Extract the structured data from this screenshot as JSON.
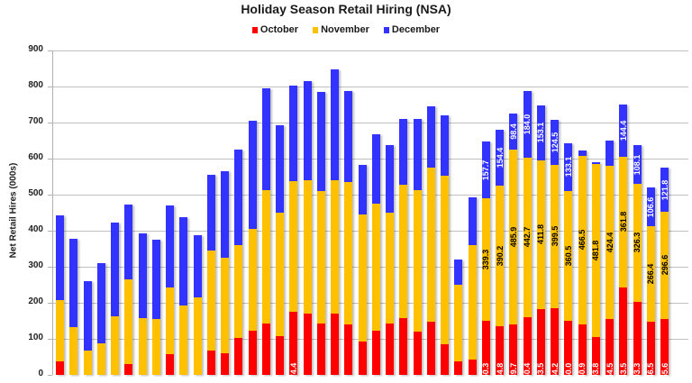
{
  "chart_data": {
    "type": "bar",
    "stacked": true,
    "title": "Holiday Season Retail Hiring (NSA)",
    "xlabel": "",
    "ylabel": "Net Retail Hires (000s)",
    "ylim": [
      0,
      900
    ],
    "yticks": [
      900,
      800,
      700,
      600,
      500,
      400,
      300,
      200,
      100,
      0
    ],
    "grid": true,
    "legend_position": "top",
    "legend": [
      "October",
      "November",
      "December"
    ],
    "colors": {
      "October": "#ff0000",
      "November": "#ffc000",
      "December": "#3333ff"
    },
    "categories": [
      "1",
      "2",
      "3",
      "4",
      "5",
      "6",
      "7",
      "8",
      "9",
      "10",
      "11",
      "12",
      "13",
      "14",
      "15",
      "16",
      "17",
      "18",
      "19",
      "20",
      "21",
      "22",
      "23",
      "24",
      "25",
      "26",
      "27",
      "28",
      "29",
      "30",
      "31",
      "32",
      "33",
      "34",
      "35",
      "36",
      "37",
      "38",
      "39",
      "40",
      "41",
      "42",
      "43",
      "44",
      "45"
    ],
    "series": [
      {
        "name": "October",
        "values": [
          37,
          0,
          0,
          0,
          0,
          30,
          0,
          0,
          58,
          0,
          0,
          68,
          59,
          103,
          122,
          142,
          108,
          174.4,
          171,
          142,
          169,
          140,
          93,
          123,
          143,
          157,
          120,
          148,
          86,
          37,
          43,
          150.3,
          134.8,
          139.7,
          160.4,
          183.5,
          184.2,
          150.0,
          140.9,
          103.8,
          154.5,
          243.5,
          203.3,
          146.5,
          155.6
        ]
      },
      {
        "name": "November",
        "values": [
          170,
          132,
          67,
          87,
          162,
          235,
          157,
          155,
          184,
          192,
          215,
          277,
          265,
          257,
          284,
          371,
          343,
          362,
          370,
          368,
          370,
          394,
          353,
          353,
          306,
          371,
          393,
          428,
          467,
          213,
          318,
          339.3,
          390.2,
          485.9,
          442.7,
          411.8,
          399.5,
          360.5,
          466.5,
          481.8,
          424.4,
          361.8,
          326.3,
          266.4,
          296.6
        ]
      },
      {
        "name": "December",
        "values": [
          235,
          246,
          192,
          222,
          260,
          207,
          235,
          220,
          227,
          245,
          173,
          211,
          242,
          265,
          298,
          283,
          241,
          266,
          273,
          275,
          308,
          253,
          136,
          191,
          189,
          181,
          196,
          169,
          168,
          71,
          132,
          157.7,
          154.4,
          98.4,
          184.0,
          153.1,
          124.5,
          133.1,
          16,
          4,
          71,
          144.4,
          108.1,
          106.6,
          121.8
        ]
      }
    ],
    "data_labels": {
      "October": {
        "18": "174.4",
        "32": "150.3",
        "33": "134.8",
        "34": "139.7",
        "35": "160.4",
        "36": "183.5",
        "37": "184.2",
        "38": "150.0",
        "39": "140.9",
        "40": "103.8",
        "41": "154.5",
        "42": "243.5",
        "43": "203.3",
        "44": "146.5",
        "45": "155.6"
      },
      "November": {
        "32": "339.3",
        "33": "390.2",
        "34": "485.9",
        "35": "442.7",
        "36": "411.8",
        "37": "399.5",
        "38": "360.5",
        "39": "466.5",
        "40": "481.8",
        "41": "424.4",
        "42": "361.8",
        "43": "326.3",
        "44": "266.4",
        "45": "296.6"
      },
      "December": {
        "32": "157.7",
        "33": "154.4",
        "34": "98.4",
        "35": "184.0",
        "36": "153.1",
        "37": "124.5",
        "38": "133.1",
        "42": "144.4",
        "43": "108.1",
        "44": "106.6",
        "45": "121.8"
      }
    }
  }
}
